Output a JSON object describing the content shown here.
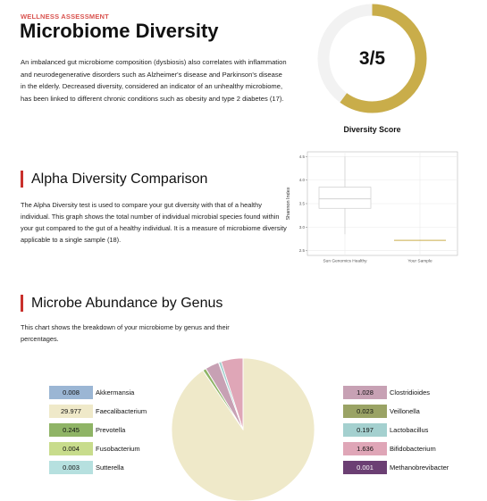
{
  "header": {
    "eyebrow": "WELLNESS ASSESSMENT",
    "title": "Microbiome Diversity",
    "intro": "An imbalanced gut microbiome composition (dysbiosis) also correlates with inflammation and neurodegenerative disorders such as Alzheimer's disease and Parkinson's disease in the elderly. Decreased diversity, considered an indicator of an unhealthy microbiome, has been linked to different chronic conditions such as obesity and type 2 diabetes (17)."
  },
  "score": {
    "value_text": "3/5",
    "value": 3,
    "max": 5,
    "caption": "Diversity Score",
    "colors": {
      "fill": "#c9ad4a",
      "track": "#f2f2f2"
    }
  },
  "alpha": {
    "heading": "Alpha Diversity Comparison",
    "text": "The Alpha Diversity test is used to compare your gut diversity with that of a healthy individual. This graph shows the total number of individual microbial species found within your gut compared to the gut of a healthy individual. It is a measure of microbiome diversity applicable to a single sample (18)."
  },
  "abundance": {
    "heading": "Microbe Abundance by Genus",
    "text": "This chart shows the breakdown of your microbiome by genus and their percentages.",
    "legend_left": [
      {
        "value": "0.008",
        "label": "Akkermansia",
        "color": "#9bb6d4"
      },
      {
        "value": "29.977",
        "label": "Faecalibacterium",
        "color": "#efe9c9"
      },
      {
        "value": "0.245",
        "label": "Prevotella",
        "color": "#8fb466"
      },
      {
        "value": "0.004",
        "label": "Fusobacterium",
        "color": "#c8dc8c"
      },
      {
        "value": "0.003",
        "label": "Sutterella",
        "color": "#b6e0df"
      }
    ],
    "legend_right": [
      {
        "value": "1.028",
        "label": "Clostridioides",
        "color": "#c7a1b4"
      },
      {
        "value": "0.023",
        "label": "Veillonella",
        "color": "#9aa365"
      },
      {
        "value": "0.197",
        "label": "Lactobacillus",
        "color": "#a4d0cf"
      },
      {
        "value": "1.636",
        "label": "Bifidobacterium",
        "color": "#dfa6b7"
      },
      {
        "value": "0.001",
        "label": "Methanobrevibacter",
        "color": "#6b3f73"
      }
    ]
  },
  "chart_data": [
    {
      "type": "box",
      "title": "",
      "xlabel": "",
      "ylabel": "Shannon Index",
      "categories": [
        "Sun Genomics Healthy",
        "Your Sample"
      ],
      "ylim": [
        2.4,
        4.6
      ],
      "yticks": [
        "2.5",
        "3.0",
        "3.5",
        "4.0",
        "4.5"
      ],
      "boxes": [
        {
          "category": "Sun Genomics Healthy",
          "q1": 3.4,
          "median": 3.6,
          "q3": 3.85,
          "whisker_low": 2.85,
          "whisker_high": 4.5,
          "color": "#cccccc"
        },
        {
          "category": "Your Sample",
          "q1": 2.72,
          "median": 2.72,
          "q3": 2.72,
          "whisker_low": 2.72,
          "whisker_high": 2.72,
          "color": "#c9ad4a"
        }
      ],
      "grid": true
    },
    {
      "type": "pie",
      "categories": [
        "Faecalibacterium",
        "Akkermansia",
        "Prevotella",
        "Fusobacterium",
        "Sutterella",
        "Clostridioides",
        "Veillonella",
        "Lactobacillus",
        "Bifidobacterium",
        "Methanobrevibacter"
      ],
      "values": [
        29.977,
        0.008,
        0.245,
        0.004,
        0.003,
        1.028,
        0.023,
        0.197,
        1.636,
        0.001
      ],
      "colors": [
        "#efe9c9",
        "#9bb6d4",
        "#8fb466",
        "#c8dc8c",
        "#b6e0df",
        "#c7a1b4",
        "#9aa365",
        "#a4d0cf",
        "#dfa6b7",
        "#6b3f73"
      ]
    }
  ]
}
